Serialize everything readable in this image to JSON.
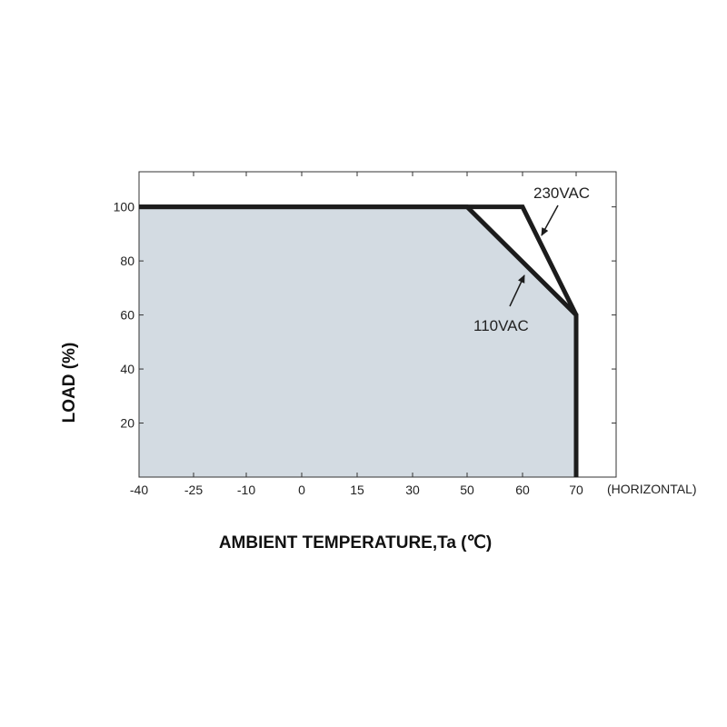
{
  "chart_data": {
    "type": "line",
    "xlabel": "AMBIENT TEMPERATURE,Ta (℃)",
    "ylabel": "LOAD (%)",
    "x_ticks": [
      -40,
      -25,
      -10,
      0,
      15,
      30,
      50,
      60,
      70
    ],
    "x_tick_labels": [
      "-40",
      "-25",
      "-10",
      "0",
      "15",
      "30",
      "50",
      "60",
      "70"
    ],
    "y_ticks": [
      20,
      40,
      60,
      80,
      100
    ],
    "y_tick_labels": [
      "20",
      "40",
      "60",
      "80",
      "100"
    ],
    "ylim": [
      0,
      113
    ],
    "x_note": "(HORIZONTAL)",
    "grid": false,
    "fill_color": "#d3dbe2",
    "line_color": "#1c1c1c",
    "series": [
      {
        "name": "230VAC",
        "x": [
          -40,
          60,
          70,
          70
        ],
        "y": [
          100,
          100,
          60,
          0
        ]
      },
      {
        "name": "110VAC",
        "x": [
          -40,
          50,
          70,
          70
        ],
        "y": [
          100,
          100,
          60,
          0
        ]
      }
    ]
  }
}
